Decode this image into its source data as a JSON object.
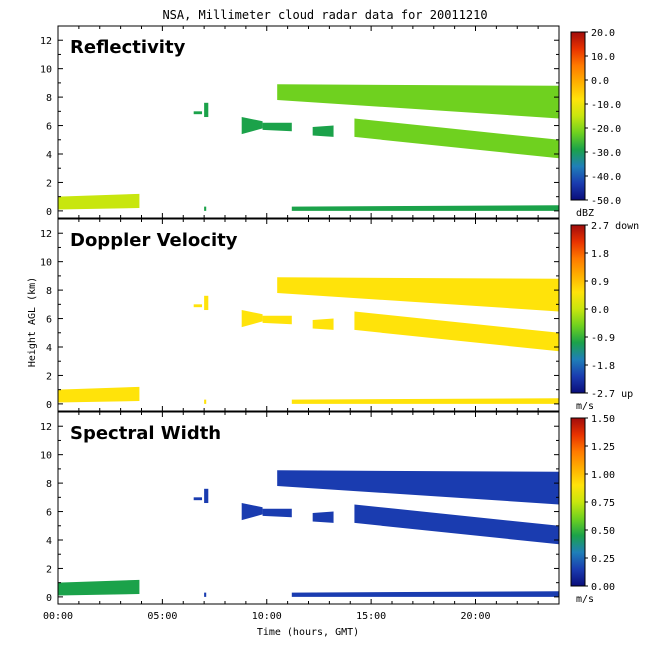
{
  "figure_title": "NSA, Millimeter cloud radar data for 20011210",
  "x_axis_title": "Time (hours, GMT)",
  "y_axis_title": "Height AGL (km)",
  "x_ticks": [
    "00:00",
    "05:00",
    "10:00",
    "15:00",
    "20:00"
  ],
  "y_ticks": [
    "0",
    "2",
    "4",
    "6",
    "8",
    "10",
    "12"
  ],
  "colors": {
    "scale": [
      "#0a0d7a",
      "#1a3cb0",
      "#1f7fb8",
      "#1ba24a",
      "#6fd11f",
      "#c8e60e",
      "#ffe30a",
      "#ffb000",
      "#ff7a00",
      "#e83200",
      "#a10c0c"
    ]
  },
  "chart_data": [
    {
      "type": "heatmap",
      "title": "Reflectivity",
      "xlabel": "",
      "ylabel": "",
      "xlim": [
        0,
        24
      ],
      "ylim": [
        -0.5,
        13
      ],
      "colorbar": {
        "min": -50,
        "max": 20,
        "ticks": [
          "20.0",
          "10.0",
          "0.0",
          "-10.0",
          "-20.0",
          "-30.0",
          "-40.0",
          "-50.0"
        ],
        "unit": "dBZ"
      },
      "echoes": [
        {
          "t0": 0.0,
          "t1": 3.9,
          "hb0": 0.1,
          "ht0": 1.0,
          "hb1": 0.2,
          "ht1": 1.2,
          "v": -18
        },
        {
          "t0": 6.5,
          "t1": 6.9,
          "hb0": 6.8,
          "ht0": 7.0,
          "hb1": 6.8,
          "ht1": 7.0,
          "v": -28
        },
        {
          "t0": 7.0,
          "t1": 7.2,
          "hb0": 6.6,
          "ht0": 7.6,
          "hb1": 6.6,
          "ht1": 7.6,
          "v": -28
        },
        {
          "t0": 8.8,
          "t1": 9.8,
          "hb0": 5.4,
          "ht0": 6.6,
          "hb1": 5.8,
          "ht1": 6.3,
          "v": -30
        },
        {
          "t0": 9.8,
          "t1": 11.2,
          "hb0": 5.7,
          "ht0": 6.2,
          "hb1": 5.6,
          "ht1": 6.2,
          "v": -30
        },
        {
          "t0": 10.5,
          "t1": 24.0,
          "hb0": 7.8,
          "ht0": 8.9,
          "hb1": 6.5,
          "ht1": 8.8,
          "v": -25
        },
        {
          "t0": 12.2,
          "t1": 13.2,
          "hb0": 5.3,
          "ht0": 5.9,
          "hb1": 5.2,
          "ht1": 6.0,
          "v": -28
        },
        {
          "t0": 14.2,
          "t1": 24.0,
          "hb0": 5.2,
          "ht0": 6.5,
          "hb1": 3.7,
          "ht1": 5.0,
          "v": -22
        },
        {
          "t0": 7.0,
          "t1": 7.1,
          "hb0": 0.0,
          "ht0": 0.3,
          "hb1": 0.0,
          "ht1": 0.3,
          "v": -30
        },
        {
          "t0": 11.2,
          "t1": 24.0,
          "hb0": 0.0,
          "ht0": 0.3,
          "hb1": 0.0,
          "ht1": 0.4,
          "v": -28
        }
      ]
    },
    {
      "type": "heatmap",
      "title": "Doppler Velocity",
      "xlabel": "",
      "ylabel": "",
      "xlim": [
        0,
        24
      ],
      "ylim": [
        -0.5,
        13
      ],
      "colorbar": {
        "min": -2.7,
        "max": 2.7,
        "ticks": [
          "2.7 down",
          "1.8",
          "0.9",
          "0.0",
          "-0.9",
          "-1.8",
          "-2.7 up"
        ],
        "unit": "m/s"
      },
      "echoes": [
        {
          "t0": 0.0,
          "t1": 3.9,
          "hb0": 0.1,
          "ht0": 1.0,
          "hb1": 0.2,
          "ht1": 1.2,
          "v": 0.4
        },
        {
          "t0": 6.5,
          "t1": 6.9,
          "hb0": 6.8,
          "ht0": 7.0,
          "hb1": 6.8,
          "ht1": 7.0,
          "v": 0.3
        },
        {
          "t0": 7.0,
          "t1": 7.2,
          "hb0": 6.6,
          "ht0": 7.6,
          "hb1": 6.6,
          "ht1": 7.6,
          "v": 0.3
        },
        {
          "t0": 8.8,
          "t1": 9.8,
          "hb0": 5.4,
          "ht0": 6.6,
          "hb1": 5.8,
          "ht1": 6.3,
          "v": 0.3
        },
        {
          "t0": 9.8,
          "t1": 11.2,
          "hb0": 5.7,
          "ht0": 6.2,
          "hb1": 5.6,
          "ht1": 6.2,
          "v": 0.3
        },
        {
          "t0": 10.5,
          "t1": 24.0,
          "hb0": 7.8,
          "ht0": 8.9,
          "hb1": 6.5,
          "ht1": 8.8,
          "v": 0.3
        },
        {
          "t0": 12.2,
          "t1": 13.2,
          "hb0": 5.3,
          "ht0": 5.9,
          "hb1": 5.2,
          "ht1": 6.0,
          "v": 0.3
        },
        {
          "t0": 14.2,
          "t1": 24.0,
          "hb0": 5.2,
          "ht0": 6.5,
          "hb1": 3.7,
          "ht1": 5.0,
          "v": 0.3
        },
        {
          "t0": 7.0,
          "t1": 7.1,
          "hb0": 0.0,
          "ht0": 0.3,
          "hb1": 0.0,
          "ht1": 0.3,
          "v": 0.3
        },
        {
          "t0": 11.2,
          "t1": 24.0,
          "hb0": 0.0,
          "ht0": 0.3,
          "hb1": 0.0,
          "ht1": 0.4,
          "v": 0.3
        }
      ]
    },
    {
      "type": "heatmap",
      "title": "Spectral Width",
      "xlabel": "",
      "ylabel": "",
      "xlim": [
        0,
        24
      ],
      "ylim": [
        -0.5,
        13
      ],
      "colorbar": {
        "min": 0,
        "max": 1.5,
        "ticks": [
          "1.50",
          "1.25",
          "1.00",
          "0.75",
          "0.50",
          "0.25",
          "0.00"
        ],
        "unit": "m/s"
      },
      "echoes": [
        {
          "t0": 0.0,
          "t1": 3.9,
          "hb0": 0.1,
          "ht0": 1.0,
          "hb1": 0.2,
          "ht1": 1.2,
          "v": 0.45
        },
        {
          "t0": 6.5,
          "t1": 6.9,
          "hb0": 6.8,
          "ht0": 7.0,
          "hb1": 6.8,
          "ht1": 7.0,
          "v": 0.2
        },
        {
          "t0": 7.0,
          "t1": 7.2,
          "hb0": 6.6,
          "ht0": 7.6,
          "hb1": 6.6,
          "ht1": 7.6,
          "v": 0.2
        },
        {
          "t0": 8.8,
          "t1": 9.8,
          "hb0": 5.4,
          "ht0": 6.6,
          "hb1": 5.8,
          "ht1": 6.3,
          "v": 0.2
        },
        {
          "t0": 9.8,
          "t1": 11.2,
          "hb0": 5.7,
          "ht0": 6.2,
          "hb1": 5.6,
          "ht1": 6.2,
          "v": 0.2
        },
        {
          "t0": 10.5,
          "t1": 24.0,
          "hb0": 7.8,
          "ht0": 8.9,
          "hb1": 6.5,
          "ht1": 8.8,
          "v": 0.2
        },
        {
          "t0": 12.2,
          "t1": 13.2,
          "hb0": 5.3,
          "ht0": 5.9,
          "hb1": 5.2,
          "ht1": 6.0,
          "v": 0.2
        },
        {
          "t0": 14.2,
          "t1": 24.0,
          "hb0": 5.2,
          "ht0": 6.5,
          "hb1": 3.7,
          "ht1": 5.0,
          "v": 0.2
        },
        {
          "t0": 7.0,
          "t1": 7.1,
          "hb0": 0.0,
          "ht0": 0.3,
          "hb1": 0.0,
          "ht1": 0.3,
          "v": 0.2
        },
        {
          "t0": 11.2,
          "t1": 24.0,
          "hb0": 0.0,
          "ht0": 0.3,
          "hb1": 0.0,
          "ht1": 0.4,
          "v": 0.2
        }
      ]
    }
  ]
}
